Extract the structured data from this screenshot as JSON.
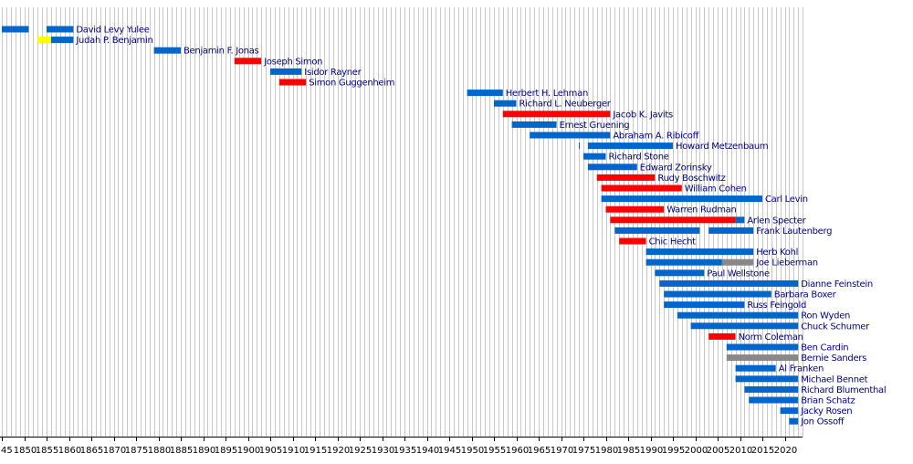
{
  "chart_data": {
    "type": "timeline",
    "title": "",
    "xlabel": "",
    "ylabel": "",
    "xlim": [
      1845,
      2024
    ],
    "grid": true,
    "tick_labels": [
      "45",
      "1850",
      "1855",
      "1860",
      "1865",
      "1870",
      "1875",
      "1880",
      "1885",
      "1890",
      "1895",
      "1900",
      "1905",
      "1910",
      "1915",
      "1920",
      "1925",
      "1930",
      "1935",
      "1940",
      "1945",
      "1950",
      "1955",
      "1960",
      "1965",
      "1970",
      "1975",
      "1980",
      "1985",
      "1990",
      "1995",
      "2000",
      "2005",
      "2010",
      "2015",
      "2020"
    ],
    "tick_years": [
      1845,
      1850,
      1855,
      1860,
      1865,
      1870,
      1875,
      1880,
      1885,
      1890,
      1895,
      1900,
      1905,
      1910,
      1915,
      1920,
      1925,
      1930,
      1935,
      1940,
      1945,
      1950,
      1955,
      1960,
      1965,
      1970,
      1975,
      1980,
      1985,
      1990,
      1995,
      2000,
      2005,
      2010,
      2015,
      2020
    ],
    "party_colors": {
      "Democratic": "#0066cc",
      "Republican": "#ff0000",
      "Whig": "#ffff00",
      "Independent": "#888888"
    },
    "series": [
      {
        "name": "David Levy Yulee",
        "segments": [
          {
            "start": 1845,
            "end": 1851,
            "party": "Democratic"
          },
          {
            "start": 1855,
            "end": 1861,
            "party": "Democratic"
          }
        ]
      },
      {
        "name": "Judah P. Benjamin",
        "segments": [
          {
            "start": 1853,
            "end": 1856,
            "party": "Whig"
          },
          {
            "start": 1856,
            "end": 1861,
            "party": "Democratic"
          }
        ]
      },
      {
        "name": "Benjamin F. Jonas",
        "segments": [
          {
            "start": 1879,
            "end": 1885,
            "party": "Democratic"
          }
        ]
      },
      {
        "name": "Joseph Simon",
        "segments": [
          {
            "start": 1897,
            "end": 1903,
            "party": "Republican"
          }
        ]
      },
      {
        "name": "Isidor Rayner",
        "segments": [
          {
            "start": 1905,
            "end": 1912,
            "party": "Democratic"
          }
        ]
      },
      {
        "name": "Simon Guggenheim",
        "segments": [
          {
            "start": 1907,
            "end": 1913,
            "party": "Republican"
          }
        ]
      },
      {
        "name": "Herbert H. Lehman",
        "segments": [
          {
            "start": 1949,
            "end": 1957,
            "party": "Democratic"
          }
        ]
      },
      {
        "name": "Richard L. Neuberger",
        "segments": [
          {
            "start": 1955,
            "end": 1960,
            "party": "Democratic"
          }
        ]
      },
      {
        "name": "Jacob K. Javits",
        "segments": [
          {
            "start": 1957,
            "end": 1981,
            "party": "Republican"
          }
        ]
      },
      {
        "name": "Ernest Gruening",
        "segments": [
          {
            "start": 1959,
            "end": 1969,
            "party": "Democratic"
          }
        ]
      },
      {
        "name": "Abraham A. Ribicoff",
        "segments": [
          {
            "start": 1963,
            "end": 1981,
            "party": "Democratic"
          }
        ]
      },
      {
        "name": "Howard Metzenbaum",
        "segments": [
          {
            "start": 1974,
            "end": 1974.2,
            "party": "Democratic"
          },
          {
            "start": 1976,
            "end": 1995,
            "party": "Democratic"
          }
        ]
      },
      {
        "name": "Richard Stone",
        "segments": [
          {
            "start": 1975,
            "end": 1980,
            "party": "Democratic"
          }
        ]
      },
      {
        "name": "Edward Zorinsky",
        "segments": [
          {
            "start": 1976,
            "end": 1987,
            "party": "Democratic"
          }
        ]
      },
      {
        "name": "Rudy Boschwitz",
        "segments": [
          {
            "start": 1978,
            "end": 1991,
            "party": "Republican"
          }
        ]
      },
      {
        "name": "William Cohen",
        "segments": [
          {
            "start": 1979,
            "end": 1997,
            "party": "Republican"
          }
        ]
      },
      {
        "name": "Carl Levin",
        "segments": [
          {
            "start": 1979,
            "end": 2015,
            "party": "Democratic"
          }
        ]
      },
      {
        "name": "Warren Rudman",
        "segments": [
          {
            "start": 1980,
            "end": 1993,
            "party": "Republican"
          }
        ]
      },
      {
        "name": "Arlen Specter",
        "segments": [
          {
            "start": 1981,
            "end": 2009,
            "party": "Republican"
          },
          {
            "start": 2009,
            "end": 2011,
            "party": "Democratic"
          }
        ]
      },
      {
        "name": "Frank Lautenberg",
        "segments": [
          {
            "start": 1982,
            "end": 2001,
            "party": "Democratic"
          },
          {
            "start": 2003,
            "end": 2013,
            "party": "Democratic"
          }
        ]
      },
      {
        "name": "Chic Hecht",
        "segments": [
          {
            "start": 1983,
            "end": 1989,
            "party": "Republican"
          }
        ]
      },
      {
        "name": "Herb Kohl",
        "segments": [
          {
            "start": 1989,
            "end": 2013,
            "party": "Democratic"
          }
        ]
      },
      {
        "name": "Joe Lieberman",
        "segments": [
          {
            "start": 1989,
            "end": 2006,
            "party": "Democratic"
          },
          {
            "start": 2006,
            "end": 2013,
            "party": "Independent"
          }
        ]
      },
      {
        "name": "Paul Wellstone",
        "segments": [
          {
            "start": 1991,
            "end": 2002,
            "party": "Democratic"
          }
        ]
      },
      {
        "name": "Dianne Feinstein",
        "segments": [
          {
            "start": 1992,
            "end": 2023,
            "party": "Democratic"
          }
        ]
      },
      {
        "name": "Barbara Boxer",
        "segments": [
          {
            "start": 1993,
            "end": 2017,
            "party": "Democratic"
          }
        ]
      },
      {
        "name": "Russ Feingold",
        "segments": [
          {
            "start": 1993,
            "end": 2011,
            "party": "Democratic"
          }
        ]
      },
      {
        "name": "Ron Wyden",
        "segments": [
          {
            "start": 1996,
            "end": 2023,
            "party": "Democratic"
          }
        ]
      },
      {
        "name": "Chuck Schumer",
        "segments": [
          {
            "start": 1999,
            "end": 2023,
            "party": "Democratic"
          }
        ]
      },
      {
        "name": "Norm Coleman",
        "segments": [
          {
            "start": 2003,
            "end": 2009,
            "party": "Republican"
          }
        ]
      },
      {
        "name": "Ben Cardin",
        "segments": [
          {
            "start": 2007,
            "end": 2023,
            "party": "Democratic"
          }
        ]
      },
      {
        "name": "Bernie Sanders",
        "segments": [
          {
            "start": 2007,
            "end": 2023,
            "party": "Independent"
          }
        ]
      },
      {
        "name": "Al Franken",
        "segments": [
          {
            "start": 2009,
            "end": 2018,
            "party": "Democratic"
          }
        ]
      },
      {
        "name": "Michael Bennet",
        "segments": [
          {
            "start": 2009,
            "end": 2023,
            "party": "Democratic"
          }
        ]
      },
      {
        "name": "Richard Blumenthal",
        "segments": [
          {
            "start": 2011,
            "end": 2023,
            "party": "Democratic"
          }
        ]
      },
      {
        "name": "Brian Schatz",
        "segments": [
          {
            "start": 2012,
            "end": 2023,
            "party": "Democratic"
          }
        ]
      },
      {
        "name": "Jacky Rosen",
        "segments": [
          {
            "start": 2019,
            "end": 2023,
            "party": "Democratic"
          }
        ]
      },
      {
        "name": "Jon Ossoff",
        "segments": [
          {
            "start": 2021,
            "end": 2023,
            "party": "Democratic"
          }
        ]
      }
    ]
  }
}
